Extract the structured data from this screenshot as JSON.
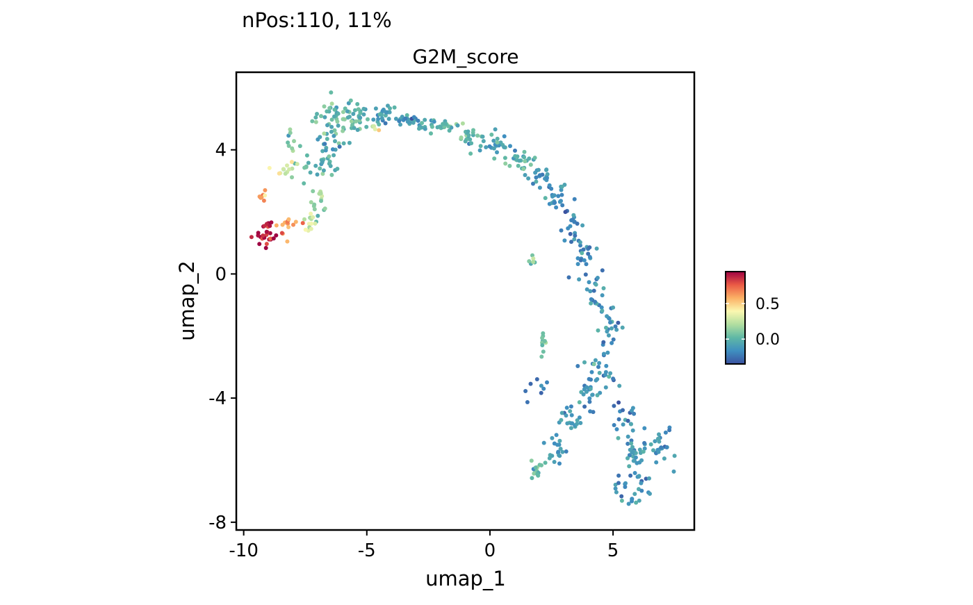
{
  "chart_data": {
    "type": "scatter",
    "title": "nPos:110, 11%",
    "subtitle": "G2M_score",
    "xlabel": "umap_1",
    "ylabel": "umap_2",
    "xlim": [
      -10.3,
      8.3
    ],
    "ylim": [
      -8.25,
      6.5
    ],
    "xticks": [
      -10,
      -5,
      0,
      5
    ],
    "yticks": [
      -8,
      -4,
      0,
      4
    ],
    "grid": false,
    "legend": {
      "placement": "right",
      "type": "colorbar",
      "range": [
        -0.35,
        0.95
      ],
      "ticks": [
        0.0,
        0.5
      ],
      "colors": [
        "#3b52a0",
        "#3f8fc0",
        "#5fb8a5",
        "#b1dea0",
        "#fbf8b0",
        "#fbb065",
        "#ea5a45",
        "#9e0142"
      ]
    },
    "point_color": "#3a82b8",
    "clusters": [
      {
        "cx": -6.1,
        "cy": 4.95,
        "sx": 0.7,
        "sy": 0.45,
        "n": 70,
        "v": 0.02
      },
      {
        "cx": -4.6,
        "cy": 5.15,
        "sx": 0.6,
        "sy": 0.18,
        "n": 28,
        "v": -0.06
      },
      {
        "cx": -3.2,
        "cy": 4.95,
        "sx": 0.6,
        "sy": 0.14,
        "n": 28,
        "v": -0.1
      },
      {
        "cx": -1.9,
        "cy": 4.75,
        "sx": 0.6,
        "sy": 0.12,
        "n": 25,
        "v": -0.02
      },
      {
        "cx": -0.6,
        "cy": 4.45,
        "sx": 0.5,
        "sy": 0.15,
        "n": 22,
        "v": 0.02
      },
      {
        "cx": 0.3,
        "cy": 4.1,
        "sx": 0.4,
        "sy": 0.18,
        "n": 22,
        "v": -0.08
      },
      {
        "cx": 1.2,
        "cy": 3.65,
        "sx": 0.4,
        "sy": 0.18,
        "n": 24,
        "v": -0.02
      },
      {
        "cx": 2.0,
        "cy": 3.2,
        "sx": 0.35,
        "sy": 0.25,
        "n": 22,
        "v": -0.12
      },
      {
        "cx": 2.65,
        "cy": 2.5,
        "sx": 0.3,
        "sy": 0.3,
        "n": 22,
        "v": -0.16
      },
      {
        "cx": 3.25,
        "cy": 1.5,
        "sx": 0.3,
        "sy": 0.35,
        "n": 20,
        "v": -0.18
      },
      {
        "cx": 3.75,
        "cy": 0.6,
        "sx": 0.3,
        "sy": 0.35,
        "n": 20,
        "v": -0.18
      },
      {
        "cx": 4.3,
        "cy": -0.5,
        "sx": 0.3,
        "sy": 0.4,
        "n": 22,
        "v": -0.14
      },
      {
        "cx": 4.85,
        "cy": -1.6,
        "sx": 0.28,
        "sy": 0.45,
        "n": 22,
        "v": -0.12
      },
      {
        "cx": 4.4,
        "cy": -3.0,
        "sx": 0.45,
        "sy": 0.45,
        "n": 24,
        "v": -0.16
      },
      {
        "cx": 3.9,
        "cy": -3.8,
        "sx": 0.35,
        "sy": 0.35,
        "n": 22,
        "v": -0.14
      },
      {
        "cx": 3.4,
        "cy": -4.8,
        "sx": 0.35,
        "sy": 0.35,
        "n": 20,
        "v": -0.12
      },
      {
        "cx": 2.7,
        "cy": -5.7,
        "sx": 0.4,
        "sy": 0.3,
        "n": 20,
        "v": -0.1
      },
      {
        "cx": 1.9,
        "cy": -6.25,
        "sx": 0.2,
        "sy": 0.25,
        "n": 16,
        "v": 0.05
      },
      {
        "cx": 2.1,
        "cy": -2.2,
        "sx": 0.12,
        "sy": 0.2,
        "n": 10,
        "v": 0.05
      },
      {
        "cx": 1.8,
        "cy": -3.7,
        "sx": 0.4,
        "sy": 0.25,
        "n": 8,
        "v": -0.2
      },
      {
        "cx": 1.75,
        "cy": 0.6,
        "sx": 0.08,
        "sy": 0.2,
        "n": 6,
        "v": 0.08
      },
      {
        "cx": 5.5,
        "cy": -4.4,
        "sx": 0.3,
        "sy": 0.4,
        "n": 16,
        "v": -0.2
      },
      {
        "cx": 5.9,
        "cy": -5.8,
        "sx": 0.45,
        "sy": 0.4,
        "n": 32,
        "v": -0.14
      },
      {
        "cx": 5.8,
        "cy": -6.9,
        "sx": 0.45,
        "sy": 0.35,
        "n": 30,
        "v": -0.16
      },
      {
        "cx": 6.9,
        "cy": -5.5,
        "sx": 0.35,
        "sy": 0.5,
        "n": 24,
        "v": -0.14
      },
      {
        "cx": -7.3,
        "cy": 3.5,
        "sx": 0.6,
        "sy": 0.5,
        "n": 22,
        "v": 0.0
      },
      {
        "cx": -6.6,
        "cy": 3.9,
        "sx": 0.3,
        "sy": 0.5,
        "n": 20,
        "v": -0.04
      },
      {
        "cx": -6.95,
        "cy": 2.3,
        "sx": 0.22,
        "sy": 0.35,
        "n": 14,
        "v": 0.12
      },
      {
        "cx": -7.3,
        "cy": 1.7,
        "sx": 0.15,
        "sy": 0.18,
        "n": 12,
        "v": 0.3
      },
      {
        "cx": -8.35,
        "cy": 3.35,
        "sx": 0.25,
        "sy": 0.2,
        "n": 12,
        "v": 0.28
      },
      {
        "cx": -9.2,
        "cy": 2.5,
        "sx": 0.15,
        "sy": 0.25,
        "n": 8,
        "v": 0.6
      },
      {
        "cx": -8.1,
        "cy": 1.6,
        "sx": 0.35,
        "sy": 0.22,
        "n": 14,
        "v": 0.62
      },
      {
        "cx": -9.05,
        "cy": 1.25,
        "sx": 0.28,
        "sy": 0.3,
        "n": 28,
        "v": 0.9
      },
      {
        "cx": -4.7,
        "cy": 4.7,
        "sx": 0.15,
        "sy": 0.06,
        "n": 4,
        "v": 0.35
      },
      {
        "cx": -8.0,
        "cy": 4.3,
        "sx": 0.15,
        "sy": 0.3,
        "n": 8,
        "v": 0.1
      }
    ]
  }
}
